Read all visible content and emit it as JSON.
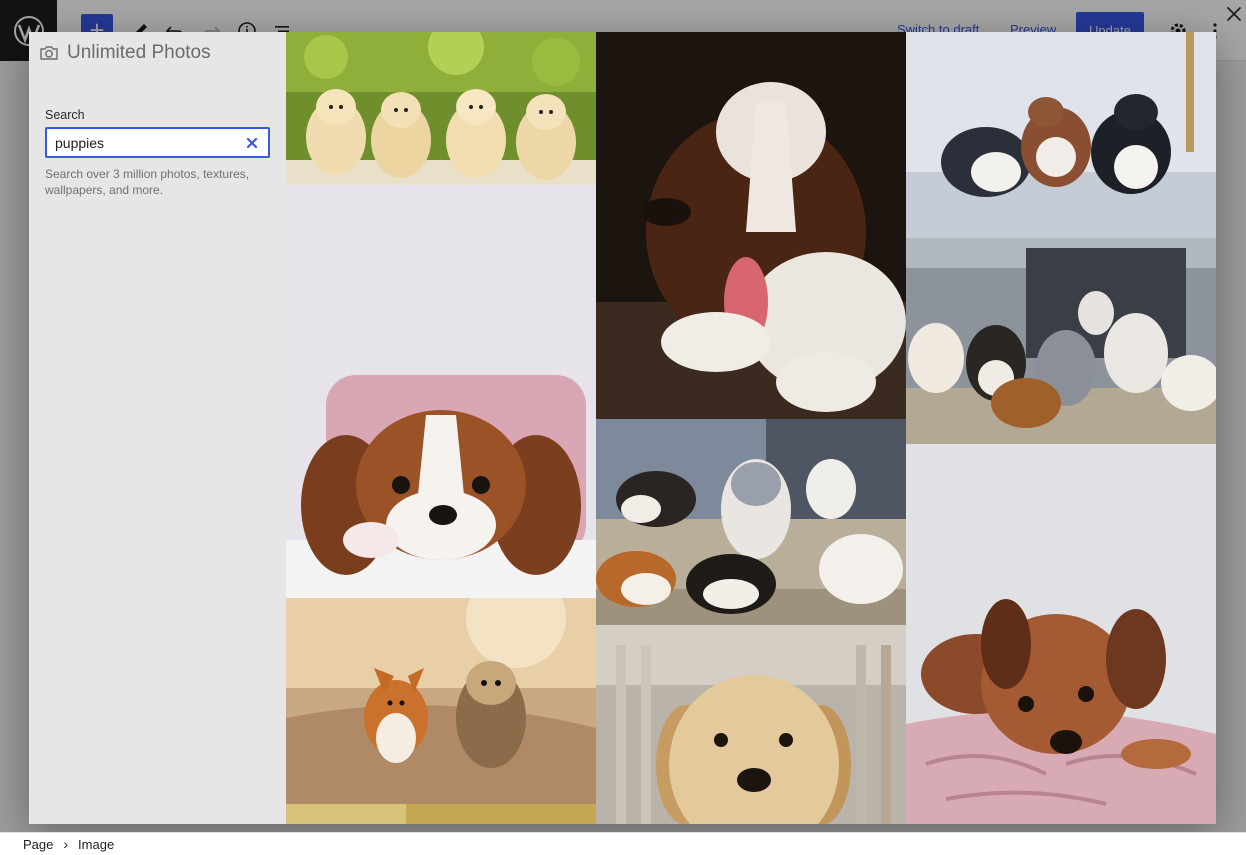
{
  "editor": {
    "toolbar": {
      "add_icon": "plus-icon",
      "tools_icon": "pencil-icon",
      "undo_icon": "undo-icon",
      "redo_icon": "redo-icon",
      "details_icon": "info-icon",
      "list_view_icon": "list-view-icon",
      "switch_to_draft": "Switch to draft",
      "preview": "Preview",
      "update": "Update",
      "settings_icon": "gear-icon",
      "options_icon": "more-vertical-icon"
    },
    "breadcrumb": {
      "items": [
        "Page",
        "Image"
      ]
    }
  },
  "modal": {
    "title": "Unlimited Photos",
    "title_icon": "camera-icon",
    "search": {
      "label": "Search",
      "value": "puppies",
      "help": "Search over 3 million photos, textures, wallpapers, and more."
    },
    "close_icon": "close-icon",
    "photos": [
      {
        "subject": "row of golden retriever puppies"
      },
      {
        "subject": "cavalier king charles puppy on pillow"
      },
      {
        "subject": "corgi and yorkie running"
      },
      {
        "subject": "partial photo at bottom"
      },
      {
        "subject": "yawning brown and white puppy"
      },
      {
        "subject": "australian shepherd puppies on step"
      },
      {
        "subject": "golden puppy portrait"
      },
      {
        "subject": "merle puppies playing on floor"
      },
      {
        "subject": "litter of puppies on porch step"
      },
      {
        "subject": "brown puppy lying on blanket"
      }
    ]
  },
  "colors": {
    "accent": "#3858e9",
    "sidebar_bg": "#e6e6e6"
  }
}
